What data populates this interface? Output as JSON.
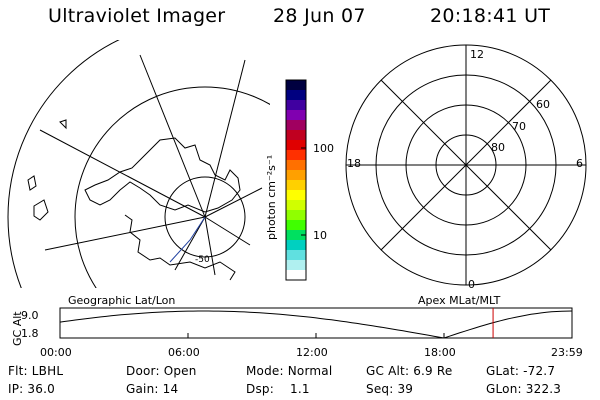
{
  "header": {
    "instrument": "Ultraviolet Imager",
    "date": "28 Jun 07",
    "time": "20:18:41 UT"
  },
  "colorbar": {
    "unit_label": "photon cm⁻²s⁻¹",
    "tick_labels": [
      "100",
      "10"
    ],
    "colors": [
      "#000040",
      "#000080",
      "#4000a0",
      "#8000b0",
      "#a00060",
      "#c00020",
      "#e00000",
      "#ff3000",
      "#ff7000",
      "#ffa000",
      "#ffd000",
      "#ffff00",
      "#d0ff00",
      "#90ff00",
      "#40ff00",
      "#00e060",
      "#00d0c0",
      "#60e0e0",
      "#b0f0f0",
      "#ffffff"
    ]
  },
  "polar_plot": {
    "mlt_labels": {
      "top": "12",
      "left": "18",
      "right": "6",
      "bottom": "0"
    },
    "lat_labels": [
      "60",
      "70",
      "80"
    ],
    "caption": "Apex MLat/MLT"
  },
  "map_plot": {
    "caption": "Geographic Lat/Lon",
    "lat_label": "-50"
  },
  "altitude_panel": {
    "y_label": "GC Alt",
    "y_ticks": [
      "9.0",
      "1.8"
    ],
    "x_ticks": [
      "00:00",
      "06:00",
      "12:00",
      "18:00",
      "23:59"
    ],
    "marker_time": "20:18",
    "marker_color": "#cc0000"
  },
  "info": {
    "row1": [
      "Flt: LBHL",
      "Door: Open",
      "Mode: Normal",
      "GC Alt: 6.9 Re",
      "GLat: -72.7"
    ],
    "row2": [
      "IP: 36.0",
      "Gain: 14",
      "Dsp:    1.1",
      "Seq: 39",
      "GLon: 322.3"
    ]
  }
}
